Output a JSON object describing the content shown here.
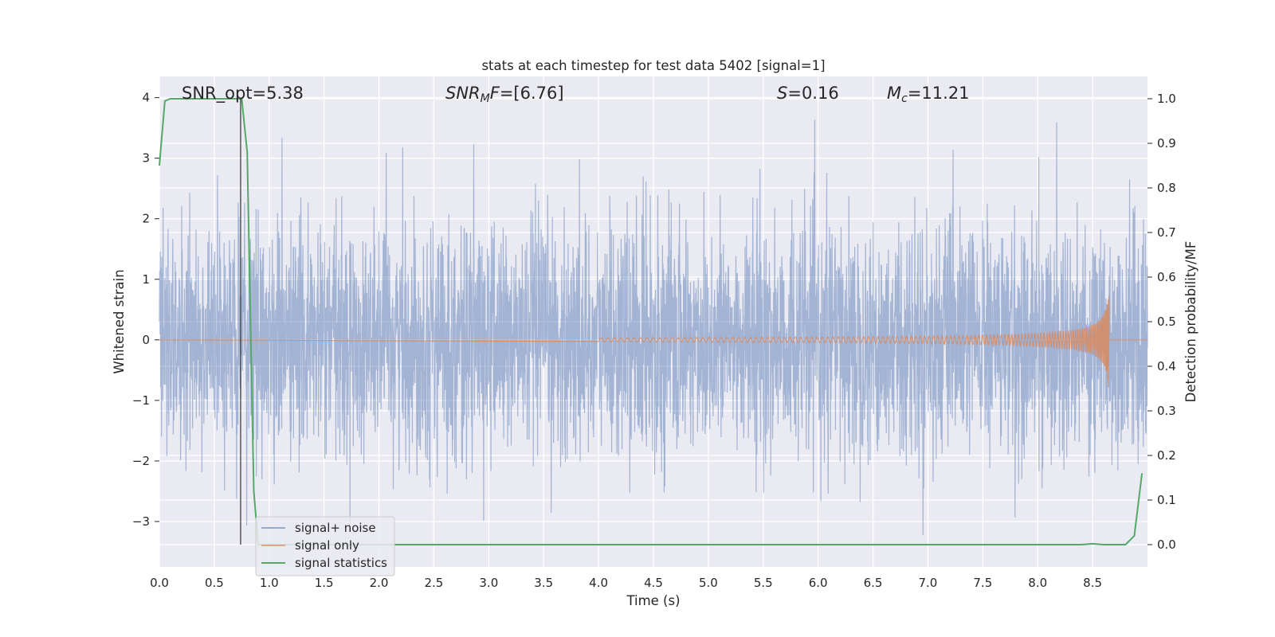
{
  "chart_data": {
    "type": "line",
    "title": "stats at each timestep for test data 5402 [signal=1]",
    "xlabel": "Time (s)",
    "ylabel": "Whitened strain",
    "ylabel_right": "Detection probability/MF",
    "xlim": [
      0.0,
      9.0
    ],
    "ylim": [
      -3.75,
      4.35
    ],
    "ylim_right": [
      -0.05,
      1.05
    ],
    "xticks": [
      "0.0",
      "0.5",
      "1.0",
      "1.5",
      "2.0",
      "2.5",
      "3.0",
      "3.5",
      "4.0",
      "4.5",
      "5.0",
      "5.5",
      "6.0",
      "6.5",
      "7.0",
      "7.5",
      "8.0",
      "8.5"
    ],
    "yticks": [
      "4",
      "3",
      "2",
      "1",
      "0",
      "−1",
      "−2",
      "−3"
    ],
    "yticks_right": [
      "1.0",
      "0.9",
      "0.8",
      "0.7",
      "0.6",
      "0.5",
      "0.4",
      "0.3",
      "0.2",
      "0.1",
      "0.0"
    ],
    "grid": true,
    "legend_position": "bottom-left",
    "annotations": {
      "snr_opt": "SNR_opt=5.38",
      "snr_mf_label": "SNR",
      "snr_mf_sub": "M",
      "snr_mf_rest": "F=[6.76]",
      "s_label": "S",
      "s_rest": "=0.16",
      "mc_label": "M",
      "mc_sub": "c",
      "mc_rest": "=11.21"
    },
    "marker_line_x": 0.74,
    "series": [
      {
        "name": "signal+ noise",
        "color": "#4c72b0",
        "description_values": "noise band, amplitude mostly within ±1.7, peaks near 4.0"
      },
      {
        "name": "signal only",
        "color": "#dd8452",
        "chirp_start": 4.0,
        "chirp_end": 8.65,
        "max_amplitude": 0.9
      },
      {
        "name": "signal statistics",
        "color": "#55a868",
        "x": [
          0.0,
          0.05,
          0.1,
          0.2,
          0.3,
          0.5,
          0.65,
          0.75,
          0.8,
          0.86,
          0.9,
          1.0,
          2.0,
          4.0,
          6.0,
          8.0,
          8.4,
          8.5,
          8.6,
          8.8,
          8.88,
          8.95
        ],
        "y": [
          0.85,
          0.995,
          1.0,
          1.0,
          1.0,
          1.0,
          1.0,
          1.0,
          0.88,
          0.12,
          0.0,
          0.0,
          0.0,
          0.0,
          0.0,
          0.0,
          0.0,
          0.002,
          0.0,
          0.0,
          0.02,
          0.16
        ]
      }
    ]
  }
}
